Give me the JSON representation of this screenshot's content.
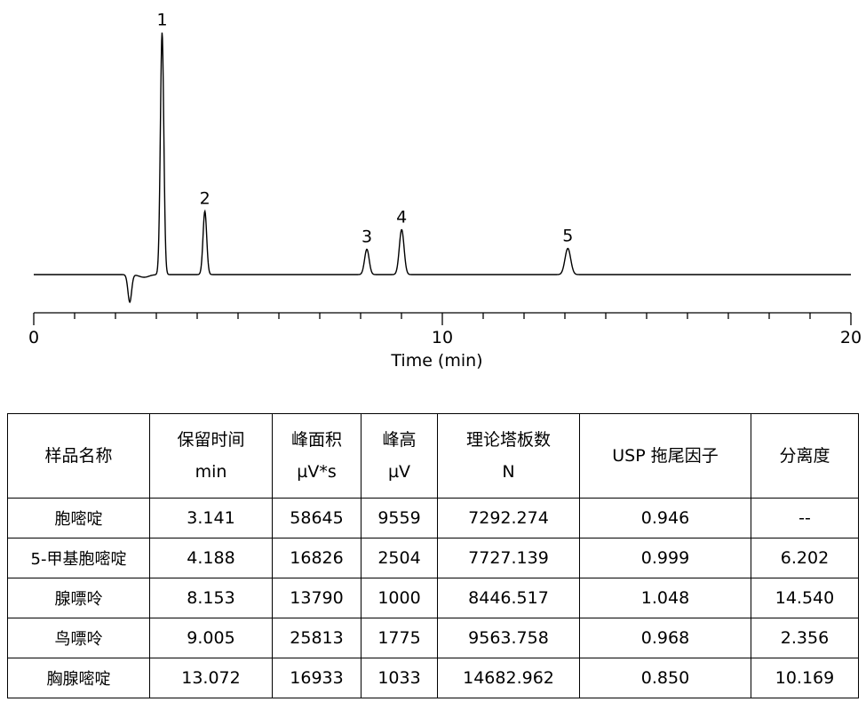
{
  "chart_data": {
    "type": "line",
    "xlabel": "Time (min)",
    "xlim": [
      0,
      20
    ],
    "x_ticks": [
      0,
      10,
      20
    ],
    "x_tick_labels": [
      "0",
      "10",
      "20"
    ],
    "minor_tick_step": 1,
    "grid": false,
    "baseline": 0,
    "dip": {
      "time": 2.35,
      "depth": 31
    },
    "peaks": [
      {
        "label": "1",
        "time": 3.141,
        "height": 9559
      },
      {
        "label": "2",
        "time": 4.188,
        "height": 2504
      },
      {
        "label": "3",
        "time": 8.153,
        "height": 1000
      },
      {
        "label": "4",
        "time": 9.005,
        "height": 1775
      },
      {
        "label": "5",
        "time": 13.072,
        "height": 1033
      }
    ]
  },
  "table": {
    "headers": [
      [
        "样品名称"
      ],
      [
        "保留时间",
        "min"
      ],
      [
        "峰面积",
        "µV*s"
      ],
      [
        "峰高",
        "µV"
      ],
      [
        "理论塔板数",
        "N"
      ],
      [
        "USP 拖尾因子"
      ],
      [
        "分离度"
      ]
    ],
    "rows": [
      [
        "胞嘧啶",
        "3.141",
        "58645",
        "9559",
        "7292.274",
        "0.946",
        "--"
      ],
      [
        "5-甲基胞嘧啶",
        "4.188",
        "16826",
        "2504",
        "7727.139",
        "0.999",
        "6.202"
      ],
      [
        "腺嘌呤",
        "8.153",
        "13790",
        "1000",
        "8446.517",
        "1.048",
        "14.540"
      ],
      [
        "鸟嘌呤",
        "9.005",
        "25813",
        "1775",
        "9563.758",
        "0.968",
        "2.356"
      ],
      [
        "胸腺嘧啶",
        "13.072",
        "16933",
        "1033",
        "14682.962",
        "0.850",
        "10.169"
      ]
    ]
  }
}
